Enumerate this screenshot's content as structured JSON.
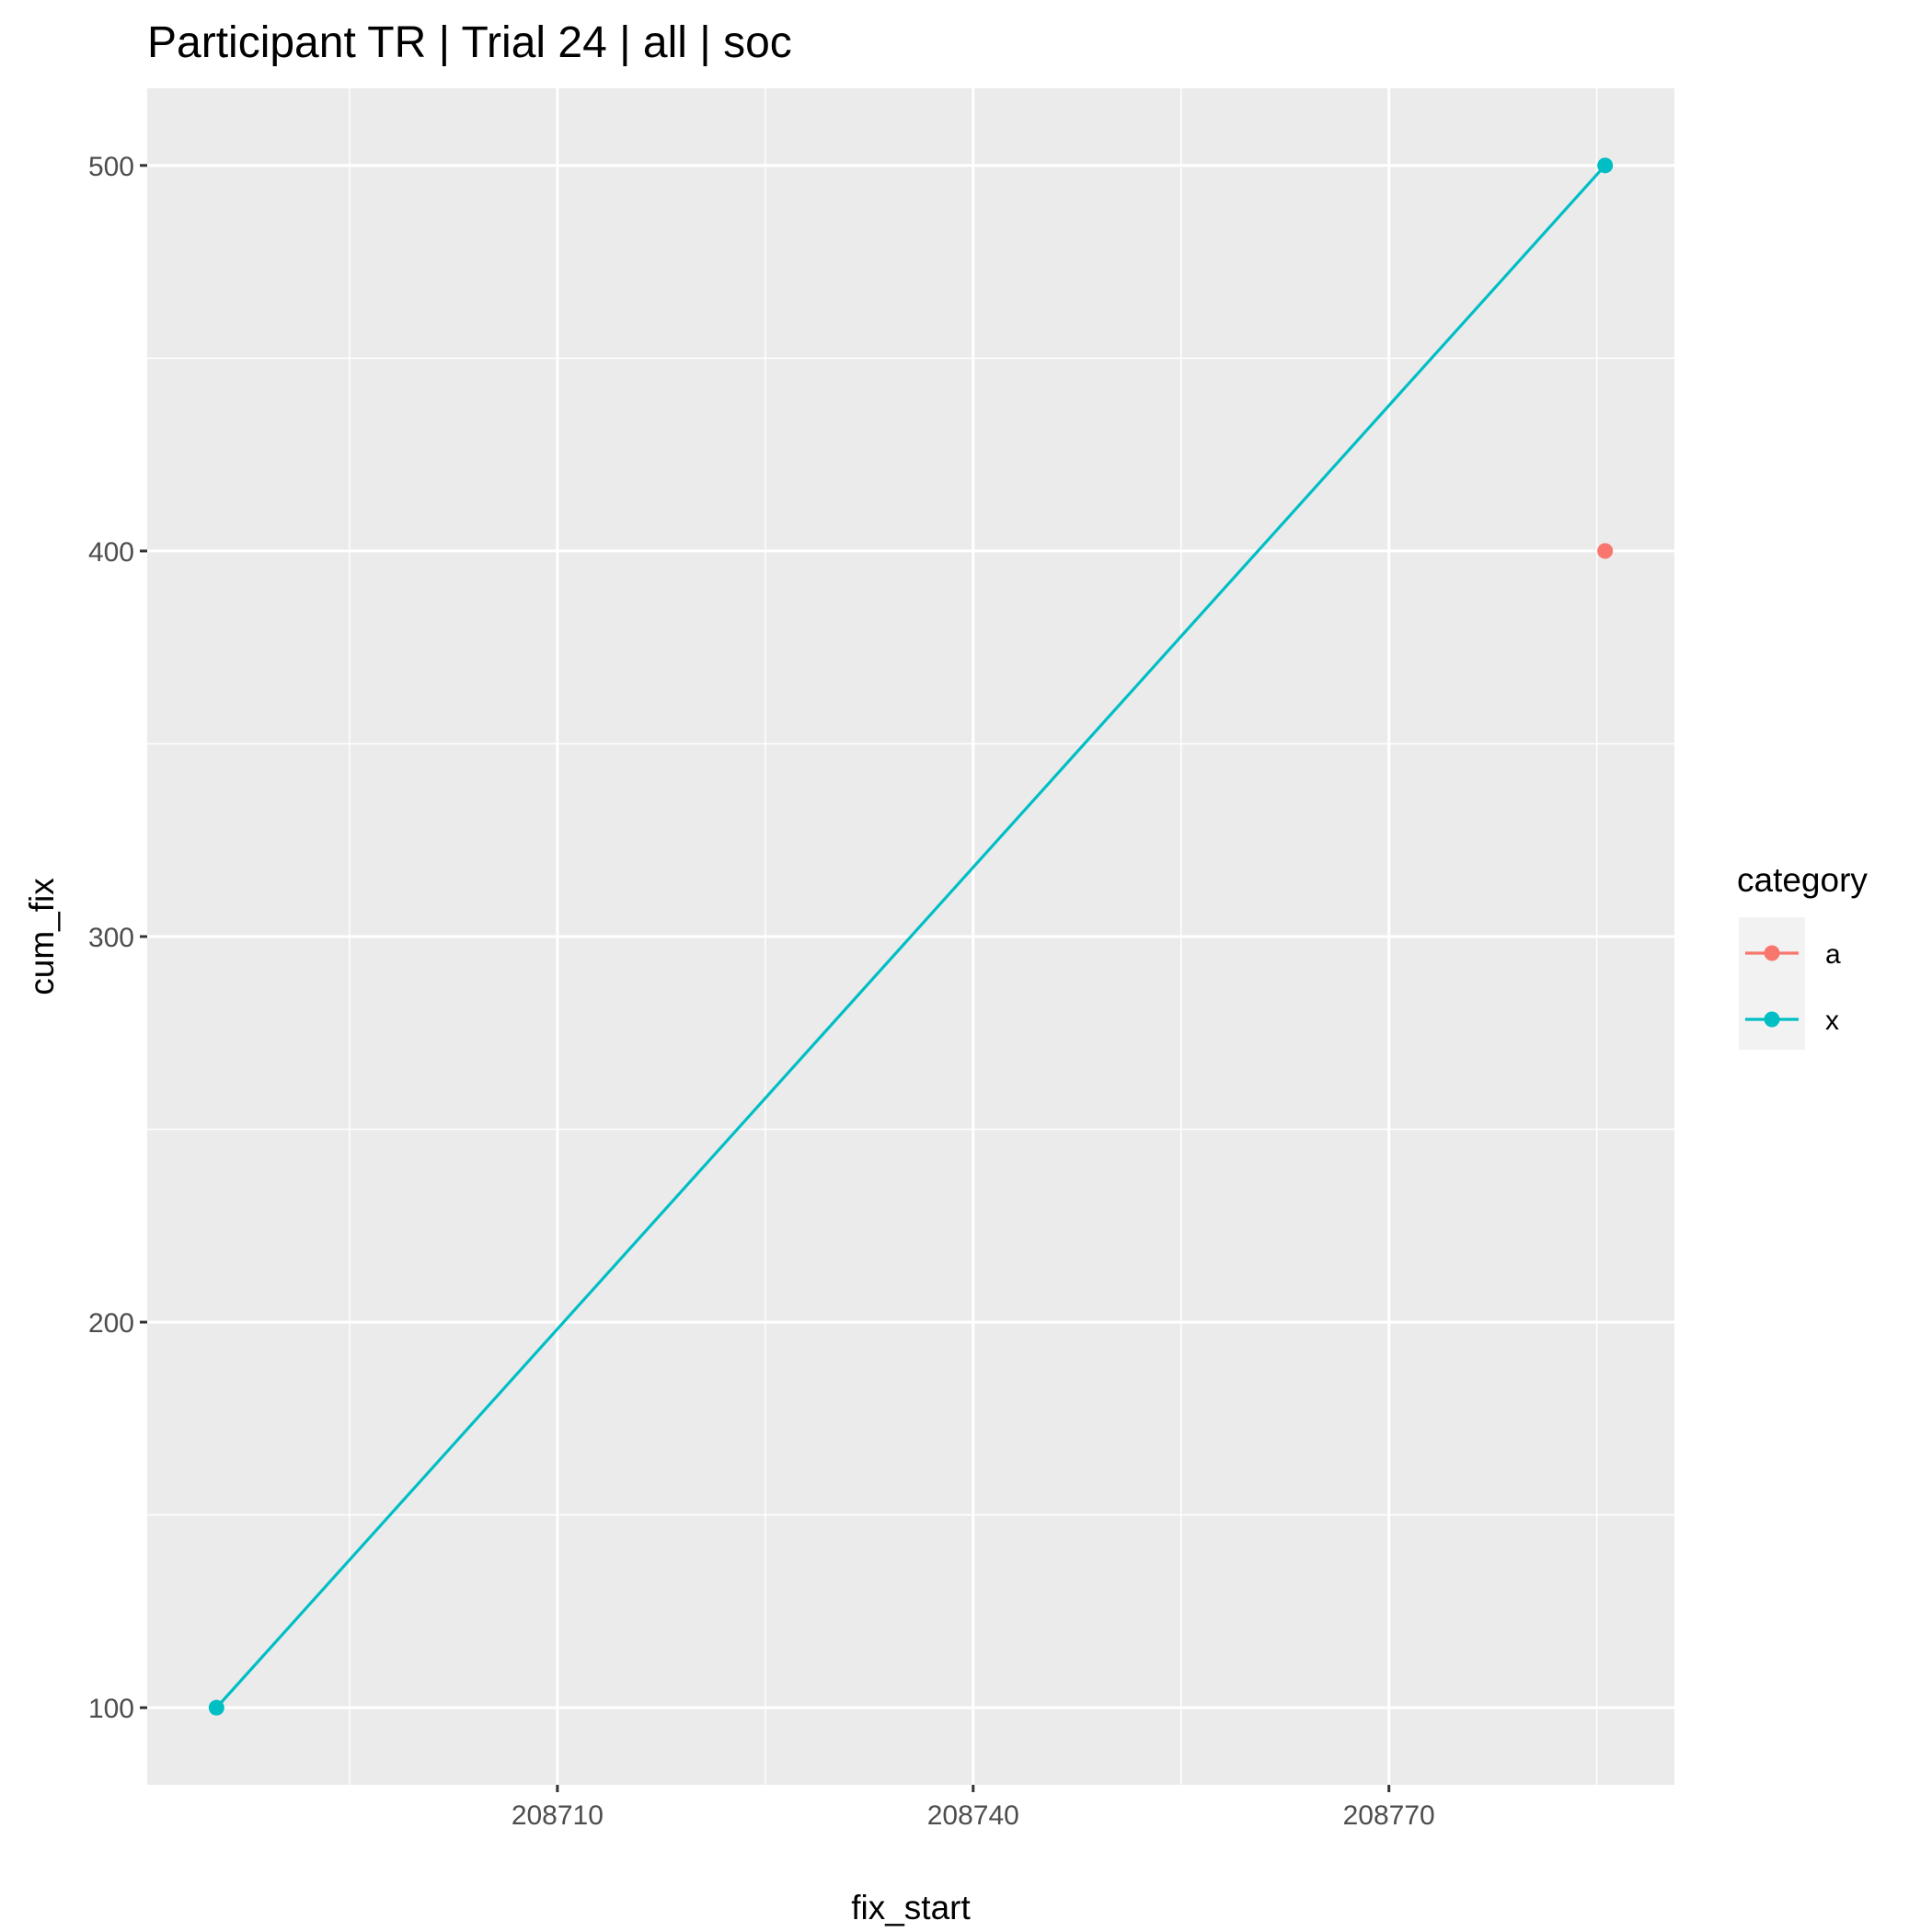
{
  "chart_data": {
    "type": "line",
    "title": "Participant TR | Trial 24 | all | soc",
    "xlabel": "fix_start",
    "ylabel": "cum_fix",
    "xlim": [
      208680.4,
      208790.6
    ],
    "ylim": [
      80,
      520
    ],
    "x_ticks": [
      208710,
      208740,
      208770
    ],
    "x_minor_ticks": [
      208695,
      208725,
      208755,
      208785
    ],
    "y_ticks": [
      100,
      200,
      300,
      400,
      500
    ],
    "y_minor_ticks": [
      150,
      250,
      350,
      450
    ],
    "grid": true,
    "legend": {
      "title": "category",
      "placement": "right"
    },
    "series": [
      {
        "name": "a",
        "color": "#F8766D",
        "points": [
          {
            "x": 208785.6,
            "y": 400
          }
        ]
      },
      {
        "name": "x",
        "color": "#00BFC4",
        "points": [
          {
            "x": 208685.4,
            "y": 100
          },
          {
            "x": 208785.6,
            "y": 500
          }
        ]
      }
    ]
  }
}
